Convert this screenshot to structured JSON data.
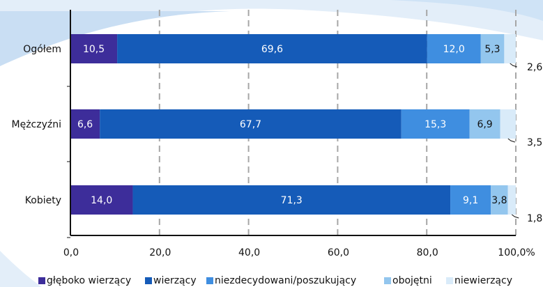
{
  "chart_data": {
    "type": "bar",
    "orientation": "horizontal",
    "stacked": true,
    "title": "",
    "categories": [
      "Ogółem",
      "Mężczyźni",
      "Kobiety"
    ],
    "series": [
      {
        "name": "głęboko wierzący",
        "color": "#3d2d9a",
        "values": [
          10.5,
          6.6,
          14.0
        ]
      },
      {
        "name": "wierzący",
        "color": "#155bb8",
        "values": [
          69.6,
          67.7,
          71.3
        ]
      },
      {
        "name": "niezdecydowani/poszukujący",
        "color": "#3f8ee0",
        "values": [
          12.0,
          15.3,
          9.1
        ]
      },
      {
        "name": "obojętni",
        "color": "#93c6ee",
        "values": [
          5.3,
          6.9,
          3.8
        ]
      },
      {
        "name": "niewierzący",
        "color": "#d9ebf9",
        "values": [
          2.6,
          3.5,
          1.8
        ]
      }
    ],
    "value_labels": [
      [
        "10,5",
        "69,6",
        "12,0",
        "5,3",
        "2,6"
      ],
      [
        "6,6",
        "67,7",
        "15,3",
        "6,9",
        "3,5"
      ],
      [
        "14,0",
        "71,3",
        "9,1",
        "3,8",
        "1,8"
      ]
    ],
    "x_ticks": [
      0,
      20,
      40,
      60,
      80,
      100
    ],
    "x_tick_labels": [
      "0,0",
      "20,0",
      "40,0",
      "60,0",
      "80,0",
      "100,0%"
    ],
    "xlim": [
      0,
      100
    ],
    "grid": "vertical dashed",
    "legend_position": "bottom"
  }
}
